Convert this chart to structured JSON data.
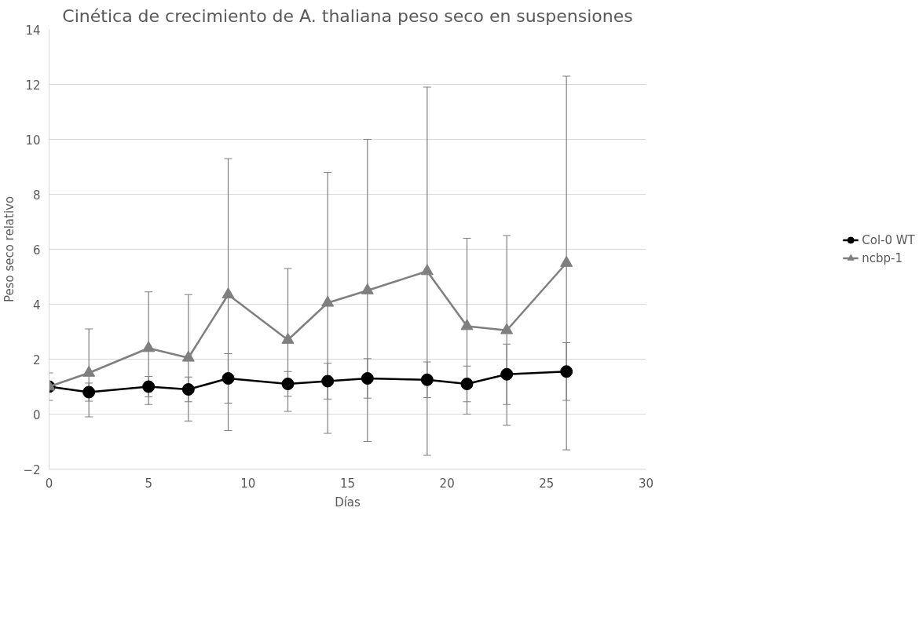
{
  "chart_data": {
    "type": "line",
    "title": "Cinética de crecimiento de A. thaliana peso seco en suspensiones",
    "xlabel": "Días",
    "ylabel": "Peso seco relativo",
    "x": [
      0,
      2,
      5,
      7,
      9,
      12,
      14,
      16,
      19,
      21,
      23,
      26
    ],
    "series": [
      {
        "name": "Col-0 WT",
        "color": "#000000",
        "marker": "circle",
        "values": [
          1.0,
          0.8,
          1.0,
          0.9,
          1.3,
          1.1,
          1.2,
          1.3,
          1.25,
          1.1,
          1.45,
          1.55
        ],
        "errors": [
          0.5,
          0.33,
          0.37,
          0.45,
          0.9,
          0.45,
          0.65,
          0.72,
          0.65,
          0.65,
          1.1,
          1.05
        ]
      },
      {
        "name": "ncbp-1",
        "color": "#7f7f7f",
        "marker": "triangle",
        "values": [
          1.0,
          1.5,
          2.4,
          2.05,
          4.35,
          2.7,
          4.05,
          4.5,
          5.2,
          3.2,
          3.05,
          5.5
        ],
        "errors": [
          null,
          1.6,
          2.05,
          2.3,
          4.95,
          2.6,
          4.75,
          5.5,
          6.7,
          3.2,
          3.45,
          6.8
        ]
      }
    ],
    "xlim": [
      0,
      30
    ],
    "xticks": [
      0,
      5,
      10,
      15,
      20,
      25,
      30
    ],
    "ylim": [
      -2,
      14
    ],
    "yticks": [
      -2,
      0,
      2,
      4,
      6,
      8,
      10,
      12,
      14
    ],
    "grid": "y",
    "legend": "right",
    "line_style": "solid"
  }
}
